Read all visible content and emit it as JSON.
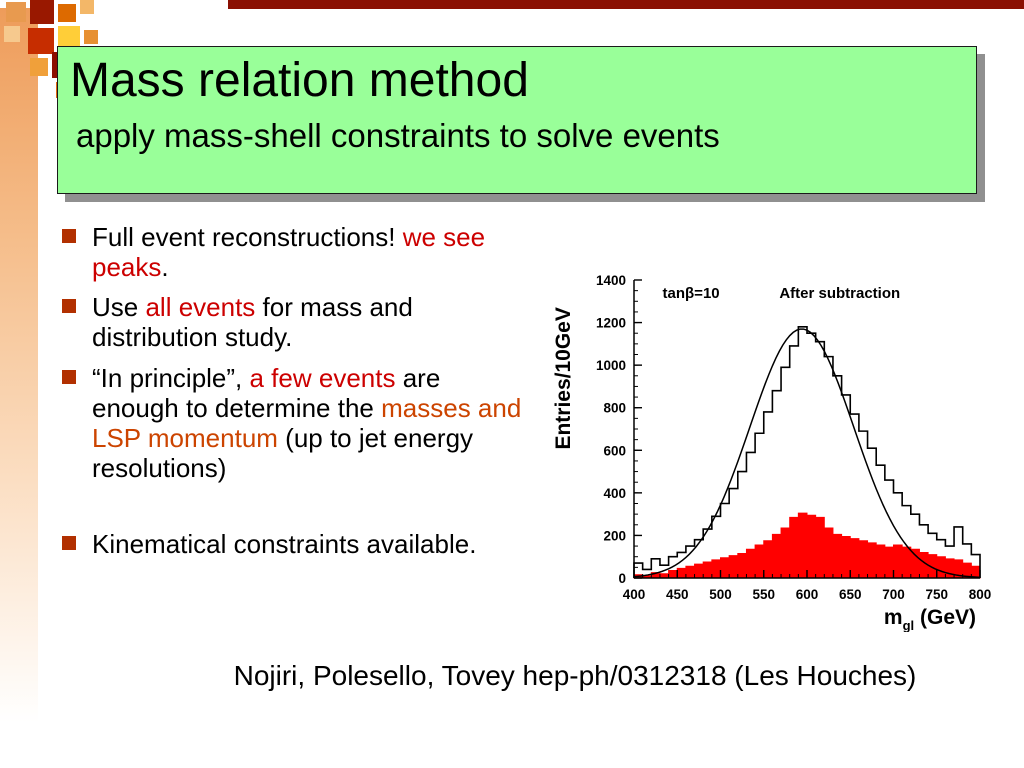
{
  "slide": {
    "title": "Mass relation method",
    "subtitle": "apply mass-shell constraints to solve events",
    "bullets": [
      {
        "segments": [
          {
            "text": "Full event reconstructions! ",
            "style": "plain"
          },
          {
            "text": "we see peaks",
            "style": "red"
          },
          {
            "text": ".",
            "style": "plain"
          }
        ]
      },
      {
        "segments": [
          {
            "text": "Use ",
            "style": "plain"
          },
          {
            "text": "all events",
            "style": "red"
          },
          {
            "text": " for mass and distribution study.",
            "style": "plain"
          }
        ]
      },
      {
        "segments": [
          {
            "text": "“In principle”, ",
            "style": "plain"
          },
          {
            "text": "a few events",
            "style": "red"
          },
          {
            "text": " are enough to determine the ",
            "style": "plain"
          },
          {
            "text": "masses  and LSP momentum",
            "style": "orange"
          },
          {
            "text": " (up to jet  energy resolutions)",
            "style": "plain"
          }
        ]
      },
      {
        "segments": [
          {
            "text": "Kinematical constraints available.",
            "style": "plain"
          }
        ]
      }
    ],
    "citation": "Nojiri, Polesello, Tovey hep-ph/0312318 (Les Houches)"
  },
  "colors": {
    "title_bg": "#99ff99",
    "red_text": "#cc0000",
    "orange_text": "#cc4400",
    "bullet_marker": "#b23000",
    "top_bar": "#8a1002",
    "hist_fill": "#ff0000",
    "hist_line": "#000000"
  },
  "chart_data": {
    "type": "histogram",
    "annotations": [
      "tanβ=10",
      "After subtraction"
    ],
    "ylabel": "Entries/10GeV",
    "xlabel": {
      "base": "m",
      "sub": "gl",
      "rest": " (GeV)"
    },
    "xlim": [
      400,
      800
    ],
    "ylim": [
      0,
      1400
    ],
    "x_ticks": [
      400,
      450,
      500,
      550,
      600,
      650,
      700,
      750,
      800
    ],
    "y_ticks": [
      0,
      200,
      400,
      600,
      800,
      1000,
      1200,
      1400
    ],
    "bin_start": 400,
    "bin_width": 10,
    "series": [
      {
        "name": "events-histogram",
        "render": "filled",
        "color": "#ff0000",
        "values": [
          15,
          10,
          25,
          20,
          35,
          45,
          55,
          65,
          75,
          85,
          95,
          105,
          115,
          135,
          155,
          175,
          205,
          235,
          285,
          305,
          295,
          285,
          235,
          205,
          195,
          185,
          175,
          165,
          155,
          145,
          155,
          145,
          135,
          120,
          110,
          100,
          90,
          85,
          70,
          55
        ]
      },
      {
        "name": "after-subtraction-histogram",
        "render": "outline",
        "color": "#000000",
        "values": [
          70,
          40,
          90,
          60,
          100,
          120,
          150,
          180,
          230,
          290,
          350,
          420,
          500,
          590,
          680,
          780,
          880,
          990,
          1090,
          1180,
          1150,
          1110,
          1040,
          950,
          860,
          770,
          690,
          610,
          530,
          460,
          400,
          340,
          300,
          250,
          210,
          180,
          150,
          240,
          160,
          110
        ]
      }
    ],
    "fit_curve": {
      "type": "gaussian",
      "amplitude": 1170,
      "mean": 594,
      "sigma": 60
    }
  }
}
